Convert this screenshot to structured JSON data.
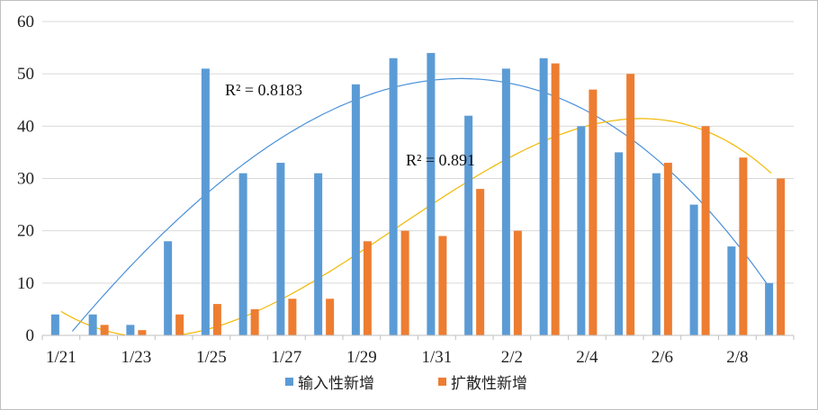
{
  "chart_data": {
    "type": "bar",
    "categories": [
      "1/21",
      "1/22",
      "1/23",
      "1/24",
      "1/25",
      "1/26",
      "1/27",
      "1/28",
      "1/29",
      "1/30",
      "1/31",
      "2/1",
      "2/2",
      "2/3",
      "2/4",
      "2/5",
      "2/6",
      "2/7",
      "2/8",
      "2/9"
    ],
    "x_tick_labels": [
      "1/21",
      "1/23",
      "1/25",
      "1/27",
      "1/29",
      "1/31",
      "2/2",
      "2/4",
      "2/6",
      "2/8"
    ],
    "ylim": [
      0,
      60
    ],
    "yticks": [
      "0",
      "10",
      "20",
      "30",
      "40",
      "50",
      "60"
    ],
    "grid": true,
    "legend_position": "bottom",
    "series": [
      {
        "name": "输入性新增",
        "color": "#5b9bd5",
        "values": [
          4,
          4,
          2,
          18,
          51,
          31,
          33,
          31,
          48,
          53,
          54,
          42,
          51,
          53,
          40,
          35,
          31,
          25,
          17,
          10
        ],
        "trendline": {
          "type": "polynomial",
          "color": "#4a90d9",
          "label": "R² = 0.8183"
        }
      },
      {
        "name": "扩散性新增",
        "color": "#ed7d31",
        "values": [
          0,
          2,
          1,
          4,
          6,
          5,
          7,
          7,
          18,
          20,
          19,
          28,
          20,
          52,
          47,
          50,
          33,
          40,
          34,
          30
        ],
        "trendline": {
          "type": "polynomial",
          "color": "#f2b800",
          "label": "R² = 0.891"
        }
      }
    ],
    "annotations": [
      {
        "text": "R² = 0.8183",
        "series": "输入性新增"
      },
      {
        "text": "R² = 0.891",
        "series": "扩散性新增"
      }
    ]
  }
}
